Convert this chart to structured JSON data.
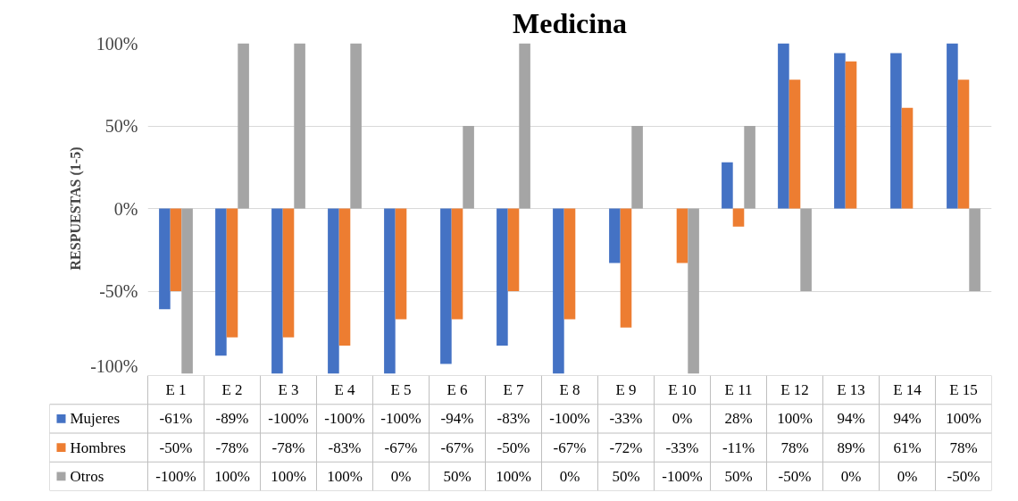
{
  "chart_data": {
    "type": "bar",
    "title": "Medicina",
    "ylabel": "RESPUESTAS (1-5)",
    "categories": [
      "E 1",
      "E 2",
      "E 3",
      "E 4",
      "E 5",
      "E 6",
      "E 7",
      "E 8",
      "E 9",
      "E 10",
      "E 11",
      "E 12",
      "E 13",
      "E 14",
      "E 15"
    ],
    "series": [
      {
        "name": "Mujeres",
        "color": "#4472c4",
        "values": [
          -61,
          -89,
          -100,
          -100,
          -100,
          -94,
          -83,
          -100,
          -33,
          0,
          28,
          100,
          94,
          94,
          100
        ],
        "value_labels": [
          "-61%",
          "-89%",
          "-100%",
          "-100%",
          "-100%",
          "-94%",
          "-83%",
          "-100%",
          "-33%",
          "0%",
          "28%",
          "100%",
          "94%",
          "94%",
          "100%"
        ]
      },
      {
        "name": "Hombres",
        "color": "#ed7d31",
        "values": [
          -50,
          -78,
          -78,
          -83,
          -67,
          -67,
          -50,
          -67,
          -72,
          -33,
          -11,
          78,
          89,
          61,
          78
        ],
        "value_labels": [
          "-50%",
          "-78%",
          "-78%",
          "-83%",
          "-67%",
          "-67%",
          "-50%",
          "-67%",
          "-72%",
          "-33%",
          "-11%",
          "78%",
          "89%",
          "61%",
          "78%"
        ]
      },
      {
        "name": "Otros",
        "color": "#a5a5a5",
        "values": [
          -100,
          100,
          100,
          100,
          0,
          50,
          100,
          0,
          50,
          -100,
          50,
          -50,
          0,
          0,
          -50
        ],
        "value_labels": [
          "-100%",
          "100%",
          "100%",
          "100%",
          "0%",
          "50%",
          "100%",
          "0%",
          "50%",
          "-100%",
          "50%",
          "-50%",
          "0%",
          "0%",
          "-50%"
        ]
      }
    ],
    "ylim": [
      -100,
      100
    ],
    "yticks": [
      {
        "value": -100,
        "label": "-100%"
      },
      {
        "value": -50,
        "label": "-50%"
      },
      {
        "value": 0,
        "label": "0%"
      },
      {
        "value": 50,
        "label": "50%"
      },
      {
        "value": 100,
        "label": "100%"
      }
    ],
    "grid": "y",
    "legend": "bottom"
  }
}
